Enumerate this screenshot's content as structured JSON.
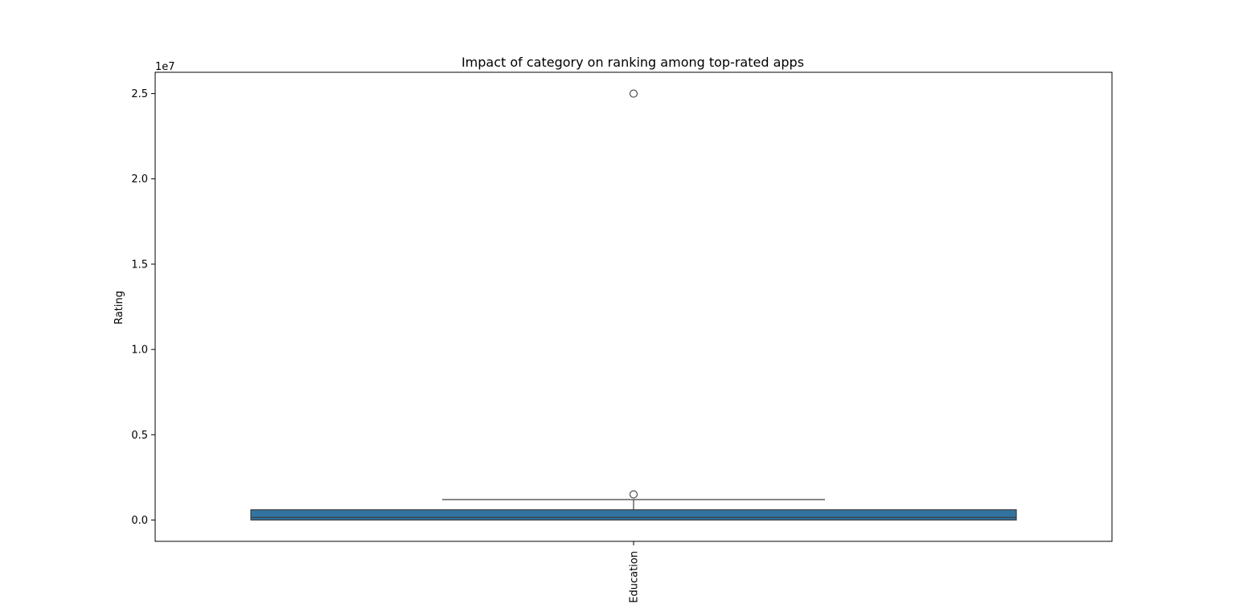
{
  "chart_data": {
    "type": "box",
    "title": "Impact of category on ranking among top-rated apps",
    "xlabel": "",
    "ylabel": "Rating",
    "y_offset_text": "1e7",
    "ylim": [
      -1250000,
      26250000
    ],
    "yticks": [
      0,
      5000000,
      10000000,
      15000000,
      20000000,
      25000000
    ],
    "ytick_labels": [
      "0.0",
      "0.5",
      "1.0",
      "1.5",
      "2.0",
      "2.5"
    ],
    "categories": [
      "Education"
    ],
    "boxes": [
      {
        "category": "Education",
        "whisker_low": 0,
        "q1": 0,
        "median": 150000,
        "q3": 600000,
        "whisker_high": 1200000,
        "outliers": [
          1500000,
          25000000
        ]
      }
    ],
    "grid": false,
    "legend": "none",
    "box_color": "#3274a1",
    "line_color": "#3d3d3d"
  }
}
